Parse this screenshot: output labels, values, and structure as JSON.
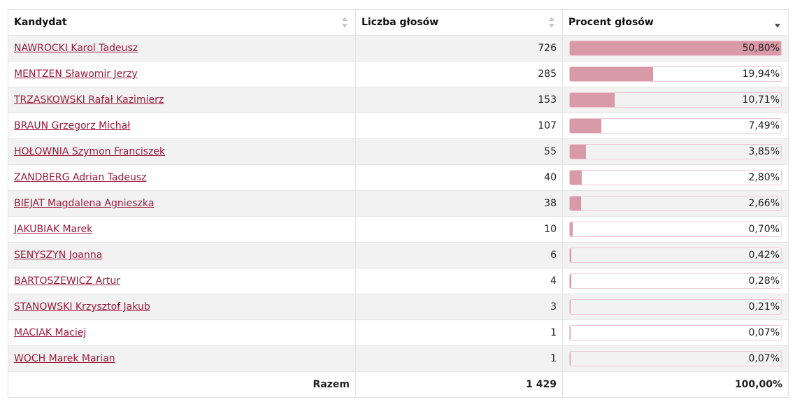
{
  "table": {
    "headers": {
      "candidate": "Kandydat",
      "votes": "Liczba głosów",
      "percent": "Procent głosów"
    },
    "sort": {
      "column": "percent",
      "direction": "desc"
    },
    "rows": [
      {
        "name": "NAWROCKI Karol Tadeusz",
        "votes": "726",
        "percent": "50,80%",
        "share": 50.8
      },
      {
        "name": "MENTZEN Sławomir Jerzy",
        "votes": "285",
        "percent": "19,94%",
        "share": 19.94
      },
      {
        "name": "TRZASKOWSKI Rafał Kazimierz",
        "votes": "153",
        "percent": "10,71%",
        "share": 10.71
      },
      {
        "name": "BRAUN Grzegorz Michał",
        "votes": "107",
        "percent": "7,49%",
        "share": 7.49
      },
      {
        "name": "HOŁOWNIA Szymon Franciszek",
        "votes": "55",
        "percent": "3,85%",
        "share": 3.85
      },
      {
        "name": "ZANDBERG Adrian Tadeusz",
        "votes": "40",
        "percent": "2,80%",
        "share": 2.8
      },
      {
        "name": "BIEJAT Magdalena Agnieszka",
        "votes": "38",
        "percent": "2,66%",
        "share": 2.66
      },
      {
        "name": "JAKUBIAK Marek",
        "votes": "10",
        "percent": "0,70%",
        "share": 0.7
      },
      {
        "name": "SENYSZYN Joanna",
        "votes": "6",
        "percent": "0,42%",
        "share": 0.42
      },
      {
        "name": "BARTOSZEWICZ Artur",
        "votes": "4",
        "percent": "0,28%",
        "share": 0.28
      },
      {
        "name": "STANOWSKI Krzysztof Jakub",
        "votes": "3",
        "percent": "0,21%",
        "share": 0.21
      },
      {
        "name": "MACIAK Maciej",
        "votes": "1",
        "percent": "0,07%",
        "share": 0.07
      },
      {
        "name": "WOCH Marek Marian",
        "votes": "1",
        "percent": "0,07%",
        "share": 0.07
      }
    ],
    "footer": {
      "label": "Razem",
      "votes": "1 429",
      "percent": "100,00%"
    }
  },
  "colors": {
    "link": "#9b1b3a",
    "bar_fill": "#d99aa8",
    "bar_border": "#f0c9d2",
    "row_alt": "#f2f2f2"
  }
}
